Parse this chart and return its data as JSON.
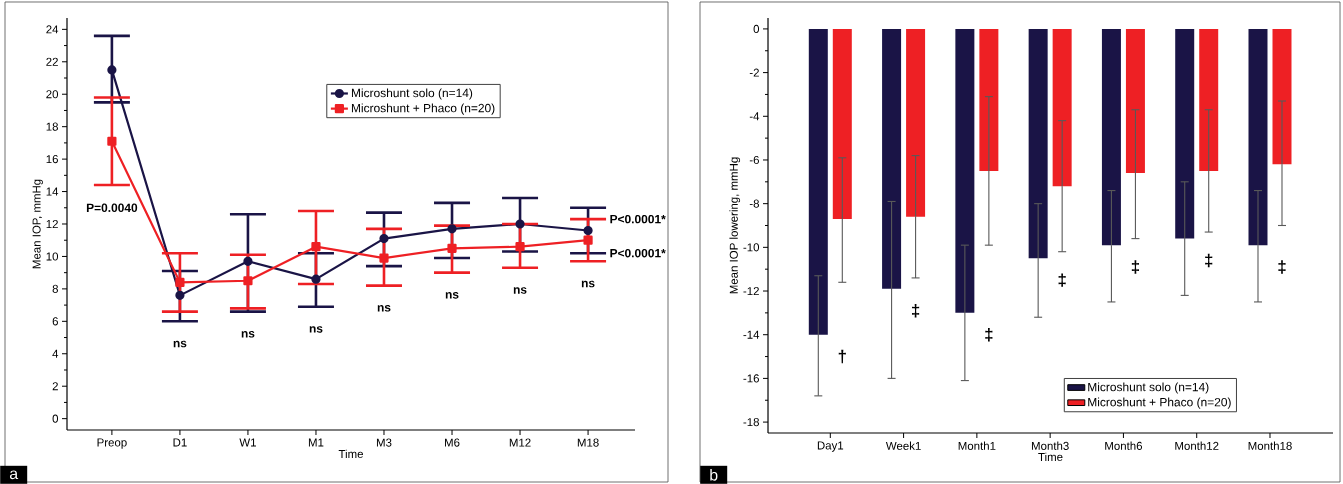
{
  "chart_data": [
    {
      "type": "line",
      "xlabel": "Time",
      "ylabel": "Mean IOP, mmHg",
      "categories": [
        "Preop",
        "D1",
        "W1",
        "M1",
        "M3",
        "M6",
        "M12",
        "M18"
      ],
      "ylim": [
        -0.7,
        24.7
      ],
      "yticks": [
        0,
        2,
        4,
        6,
        8,
        10,
        12,
        14,
        16,
        18,
        20,
        22,
        24
      ],
      "legend": "top",
      "line_style": "solid",
      "series": [
        {
          "name": "Microshunt solo (n=14)",
          "color": "#1a1446",
          "marker": "circle",
          "values": [
            21.5,
            7.6,
            9.7,
            8.6,
            11.1,
            11.7,
            12.0,
            11.6
          ],
          "errors": [
            [
              19.5,
              23.6
            ],
            [
              6.0,
              9.1
            ],
            [
              6.6,
              12.6
            ],
            [
              6.9,
              10.2
            ],
            [
              9.4,
              12.7
            ],
            [
              9.9,
              13.3
            ],
            [
              10.3,
              13.6
            ],
            [
              10.2,
              13.0
            ]
          ]
        },
        {
          "name": "Microshunt + Phaco (n=20)",
          "color": "#ee2024",
          "marker": "square",
          "values": [
            17.1,
            8.4,
            8.5,
            10.6,
            9.9,
            10.5,
            10.6,
            11.0
          ],
          "errors": [
            [
              14.4,
              19.8
            ],
            [
              6.6,
              10.2
            ],
            [
              6.8,
              10.1
            ],
            [
              8.3,
              12.8
            ],
            [
              8.2,
              11.7
            ],
            [
              9.0,
              11.9
            ],
            [
              9.3,
              12.0
            ],
            [
              9.7,
              12.3
            ]
          ]
        }
      ],
      "annotations": [
        "P=0.0040",
        "ns",
        "ns",
        "ns",
        "ns",
        "ns",
        "ns",
        "ns",
        "P<0.0001*",
        "P<0.0001*",
        "a"
      ]
    },
    {
      "type": "bar",
      "xlabel": "Time",
      "ylabel": "Mean IOP lowering, mmHg",
      "categories": [
        "Day1",
        "Week1",
        "Month1",
        "Month3",
        "Month6",
        "Month12",
        "Month18"
      ],
      "ylim": [
        -18.5,
        0.5
      ],
      "yticks": [
        -18,
        -16,
        -14,
        -12,
        -10,
        -8,
        -6,
        -4,
        -2,
        0
      ],
      "legend": "bottom right",
      "series": [
        {
          "name": "Microshunt solo (n=14)",
          "color": "#1a1446",
          "values": [
            -14.0,
            -11.9,
            -13.0,
            -10.5,
            -9.9,
            -9.6,
            -9.9
          ],
          "errors": [
            [
              -16.8,
              -11.3
            ],
            [
              -16.0,
              -7.9
            ],
            [
              -16.1,
              -9.9
            ],
            [
              -13.2,
              -8.0
            ],
            [
              -12.5,
              -7.4
            ],
            [
              -12.2,
              -7.0
            ],
            [
              -12.5,
              -7.4
            ]
          ]
        },
        {
          "name": "Microshunt + Phaco (n=20)",
          "color": "#ee2024",
          "values": [
            -8.7,
            -8.6,
            -6.5,
            -7.2,
            -6.6,
            -6.5,
            -6.2
          ],
          "errors": [
            [
              -11.6,
              -5.9
            ],
            [
              -11.4,
              -5.8
            ],
            [
              -9.9,
              -3.1
            ],
            [
              -10.2,
              -4.2
            ],
            [
              -9.6,
              -3.7
            ],
            [
              -9.3,
              -3.7
            ],
            [
              -9.0,
              -3.3
            ]
          ]
        }
      ],
      "annotations": [
        "†",
        "‡",
        "‡",
        "‡",
        "‡",
        "‡",
        "‡",
        "b"
      ]
    }
  ]
}
